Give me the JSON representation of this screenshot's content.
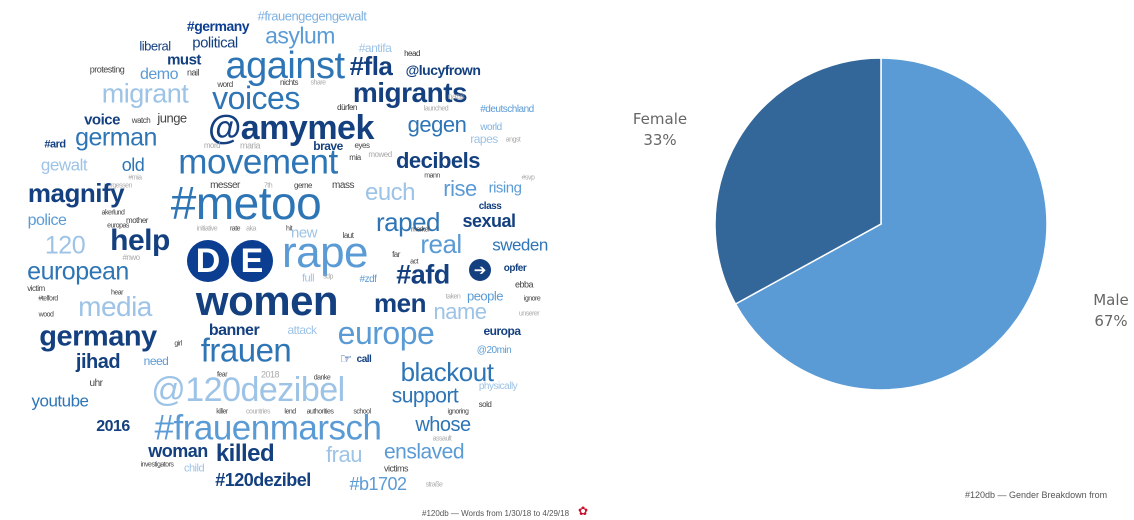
{
  "word_cloud": {
    "caption": "#120db — Words from 1/30/18 to 4/29/18",
    "de_letters": [
      "D",
      "E"
    ],
    "words": [
      "#frauengegengewalt",
      "#germany",
      "asylum",
      "liberal",
      "political",
      "#antifa",
      "head",
      "against",
      "#fla",
      "must",
      "protesting",
      "nail",
      "@lucyfrown",
      "demo",
      "nichts",
      "share",
      "word",
      "migrant",
      "voices",
      "migrants",
      "nazis",
      "dürfen",
      "launched",
      "#deutschland",
      "voice",
      "watch",
      "junge",
      "@amymek",
      "gegen",
      "world",
      "german",
      "#ard",
      "mord",
      "maria",
      "brave",
      "eyes",
      "mia",
      "mowed",
      "rapes",
      "angst",
      "movement",
      "decibels",
      "gewalt",
      "old",
      "#mia",
      "vergessen",
      "mann",
      "#svp",
      "magnify",
      "#metoo",
      "euch",
      "rise",
      "rising",
      "messer",
      "7th",
      "gerne",
      "mass",
      "akerlund",
      "mother",
      "class",
      "police",
      "europas",
      "raped",
      "sexual",
      "120",
      "help",
      "initiative",
      "rate",
      "aka",
      "hit",
      "new",
      "laut",
      "merkel",
      "sweden",
      "real",
      "european",
      "rape",
      "#nwo",
      "#afd",
      "far",
      "act",
      "opfer",
      "women",
      "full",
      "sdp",
      "#zdf",
      "ebba",
      "victim",
      "hear",
      "#telford",
      "media",
      "people",
      "ignore",
      "wood",
      "men",
      "name",
      "taken",
      "unserer",
      "germany",
      "banner",
      "attack",
      "europe",
      "europa",
      "girl",
      "call",
      "frauen",
      "@20min",
      "jihad",
      "need",
      "2018",
      "danke",
      "blackout",
      "uhr",
      "fear",
      "physically",
      "@120dezibel",
      "youtube",
      "support",
      "sold",
      "killer",
      "countries",
      "lend",
      "authorities",
      "school",
      "ignoring",
      "2016",
      "#frauenmarsch",
      "whose",
      "assault",
      "woman",
      "killed",
      "frau",
      "enslaved",
      "investigators",
      "child",
      "victims",
      "#120dezibel",
      "#b1702",
      "straße"
    ]
  },
  "chart_data": {
    "type": "pie",
    "title": "",
    "caption": "#120db — Gender Breakdown from",
    "categories": [
      "Female",
      "Male"
    ],
    "values": [
      33,
      67
    ],
    "value_labels": [
      "33%",
      "67%"
    ],
    "colors": [
      "#336699",
      "#5b9bd5"
    ],
    "legend": "none (labels beside slices)"
  },
  "icons": {
    "cloud_circle": "de-circle-icon",
    "arrow": "arrow-right-circle-icon",
    "hand": "pointing-hand-icon",
    "gear": "gear-icon"
  }
}
